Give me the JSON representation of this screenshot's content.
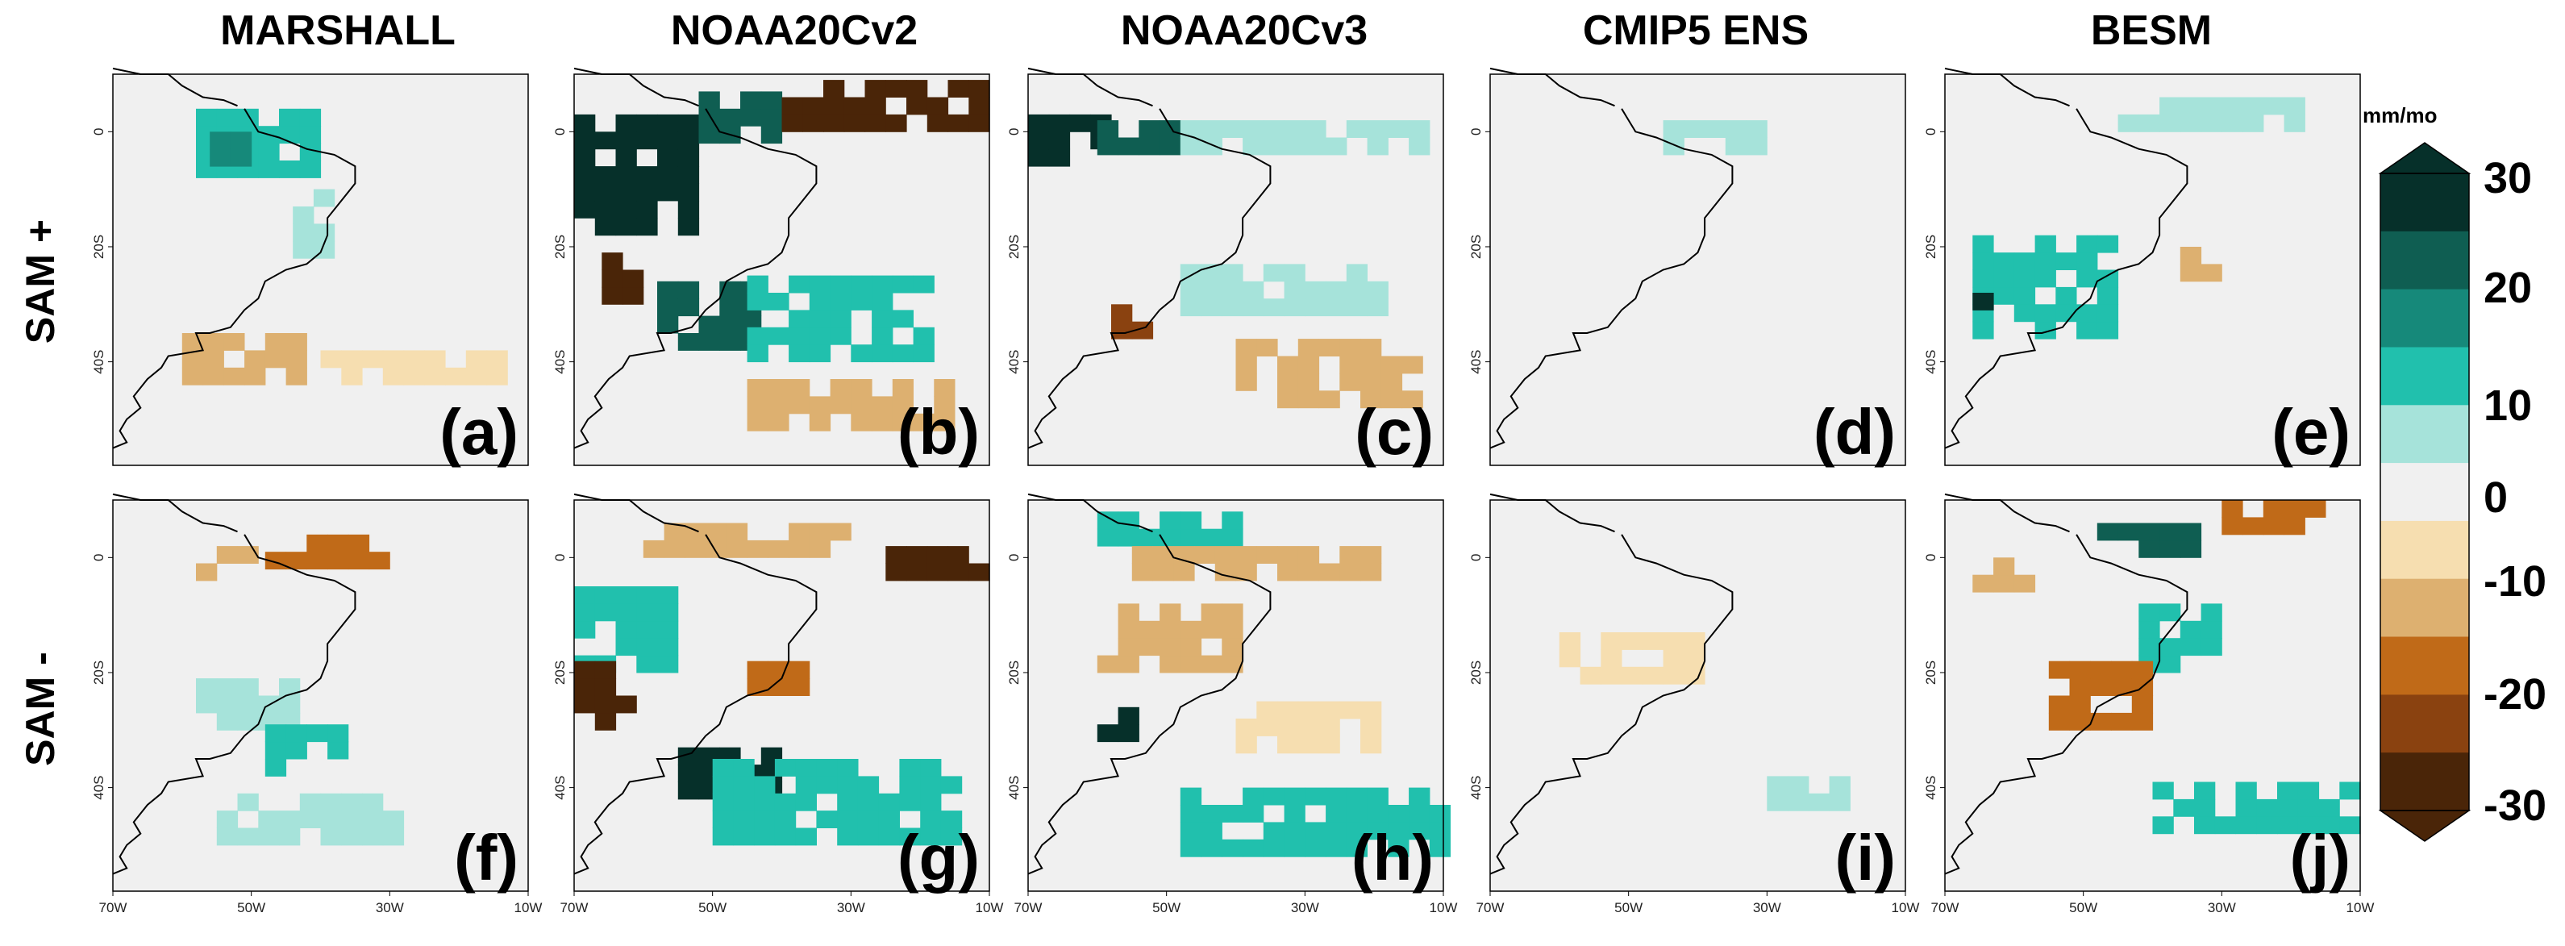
{
  "columns": [
    "MARSHALL",
    "NOAA20Cv2",
    "NOAA20Cv3",
    "CMIP5 ENS",
    "BESM"
  ],
  "rows": [
    "SAM +",
    "SAM -"
  ],
  "panel_labels": [
    "(a)",
    "(b)",
    "(c)",
    "(d)",
    "(e)",
    "(f)",
    "(g)",
    "(h)",
    "(i)",
    "(j)"
  ],
  "colorbar": {
    "units": "mm/mo",
    "tick_labels": [
      "30",
      "20",
      "10",
      "0",
      "-10",
      "-20",
      "-30"
    ],
    "colors": [
      "#06302a",
      "#0f5e52",
      "#16897a",
      "#21c0ad",
      "#a6e3da",
      "#f0f0f0",
      "#f6deb0",
      "#ddb070",
      "#c06a18",
      "#8a4210",
      "#4a2508"
    ]
  },
  "chart_data": {
    "type": "heatmap",
    "title": "",
    "xlabel": "",
    "ylabel": "",
    "units": "mm/mo",
    "xlim": [
      "70W",
      "10W"
    ],
    "ylim": [
      "~58S",
      "~10N"
    ],
    "x_ticks": [
      "70W",
      "50W",
      "30W",
      "10W"
    ],
    "y_ticks": [
      "0",
      "20S",
      "40S"
    ],
    "color_levels": [
      -30,
      -25,
      -20,
      -15,
      -10,
      -5,
      5,
      10,
      15,
      20,
      25,
      30
    ],
    "panels": [
      {
        "label": "(a)",
        "row": "SAM +",
        "column": "MARSHALL",
        "features": [
          {
            "value": 10,
            "region": "lon -58..-42, lat -8..4"
          },
          {
            "value": 15,
            "region": "lon -56..-50, lat -6..-2"
          },
          {
            "value": 7,
            "region": "lon -44..-40, lat -22..-12"
          },
          {
            "value": -10,
            "region": "lon -60..-42, lat -44..-36"
          },
          {
            "value": -7,
            "region": "lon -40..-15, lat -44..-38"
          }
        ]
      },
      {
        "label": "(b)",
        "row": "SAM +",
        "column": "NOAA20Cv2",
        "features": [
          {
            "value": 30,
            "region": "lon -70..-52, lat -18..2"
          },
          {
            "value": 20,
            "region": "lon -52..-40, lat -2..6"
          },
          {
            "value": -30,
            "region": "lon -40..-10, lat 0..7"
          },
          {
            "value": -25,
            "region": "lon -66..-60, lat -30..-22"
          },
          {
            "value": 22,
            "region": "lon -58..-45, lat -38..-28"
          },
          {
            "value": 12,
            "region": "lon -45..-20, lat -40..-26"
          },
          {
            "value": -12,
            "region": "lon -45..-15, lat -52..-44"
          }
        ]
      },
      {
        "label": "(c)",
        "row": "SAM +",
        "column": "NOAA20Cv3",
        "features": [
          {
            "value": 30,
            "region": "lon -70..-60, lat -6..2"
          },
          {
            "value": 20,
            "region": "lon -60..-50, lat -4..2"
          },
          {
            "value": 8,
            "region": "lon -48..-12, lat -4..2"
          },
          {
            "value": 8,
            "region": "lon -48..-20, lat -32..-24"
          },
          {
            "value": -20,
            "region": "lon -58..-54, lat -36..-32"
          },
          {
            "value": -12,
            "region": "lon -40..-10, lat -48..-38"
          }
        ]
      },
      {
        "label": "(d)",
        "row": "SAM +",
        "column": "CMIP5 ENS",
        "features": [
          {
            "value": 7,
            "region": "lon -45..-30, lat -4..2"
          }
        ]
      },
      {
        "label": "(e)",
        "row": "SAM +",
        "column": "BESM",
        "features": [
          {
            "value": 7,
            "region": "lon -45..-20, lat 0..6"
          },
          {
            "value": 10,
            "region": "lon -66..-46, lat -36..-20"
          },
          {
            "value": 30,
            "region": "lon -66..-64, lat -34..-28"
          },
          {
            "value": -12,
            "region": "lon -36..-30, lat -26..-20"
          }
        ]
      },
      {
        "label": "(f)",
        "row": "SAM -",
        "column": "MARSHALL",
        "features": [
          {
            "value": -15,
            "region": "lon -48..-30, lat -2..4"
          },
          {
            "value": -10,
            "region": "lon -58..-50, lat -4..0"
          },
          {
            "value": 8,
            "region": "lon -58..-45, lat -30..-22"
          },
          {
            "value": 10,
            "region": "lon -48..-38, lat -38..-30"
          },
          {
            "value": 6,
            "region": "lon -55..-30, lat -50..-42"
          }
        ]
      },
      {
        "label": "(g)",
        "row": "SAM -",
        "column": "NOAA20Cv2",
        "features": [
          {
            "value": -25,
            "region": "lon -25..-12, lat -4..2"
          },
          {
            "value": -10,
            "region": "lon -60..-30, lat 0..6"
          },
          {
            "value": 12,
            "region": "lon -70..-55, lat -20..-6"
          },
          {
            "value": -30,
            "region": "lon -70..-62, lat -30..-20"
          },
          {
            "value": -15,
            "region": "lon -45..-38, lat -24..-18"
          },
          {
            "value": 25,
            "region": "lon -55..-40, lat -42..-34"
          },
          {
            "value": 12,
            "region": "lon -50..-15, lat -50..-36"
          }
        ]
      },
      {
        "label": "(h)",
        "row": "SAM -",
        "column": "NOAA20Cv3",
        "features": [
          {
            "value": 10,
            "region": "lon -60..-40, lat 2..8"
          },
          {
            "value": -10,
            "region": "lon -55..-20, lat -4..2"
          },
          {
            "value": -12,
            "region": "lon -60..-40, lat -20..-8"
          },
          {
            "value": 30,
            "region": "lon -60..-54, lat -32..-26"
          },
          {
            "value": 12,
            "region": "lon -48..-10, lat -52..-40"
          },
          {
            "value": -8,
            "region": "lon -40..-20, lat -34..-26"
          }
        ]
      },
      {
        "label": "(i)",
        "row": "SAM -",
        "column": "CMIP5 ENS",
        "features": [
          {
            "value": -7,
            "region": "lon -60..-40, lat -22..-14"
          },
          {
            "value": 7,
            "region": "lon -30..-20, lat -44..-40"
          }
        ]
      },
      {
        "label": "(j)",
        "row": "SAM -",
        "column": "BESM",
        "features": [
          {
            "value": 20,
            "region": "lon -48..-34, lat 0..4"
          },
          {
            "value": -15,
            "region": "lon -30..-15, lat 4..8"
          },
          {
            "value": 12,
            "region": "lon -42..-30, lat -20..-8"
          },
          {
            "value": -15,
            "region": "lon -55..-40, lat -30..-20"
          },
          {
            "value": 12,
            "region": "lon -40..-10, lat -48..-40"
          },
          {
            "value": -10,
            "region": "lon -66..-58, lat -6..0"
          }
        ]
      }
    ]
  }
}
